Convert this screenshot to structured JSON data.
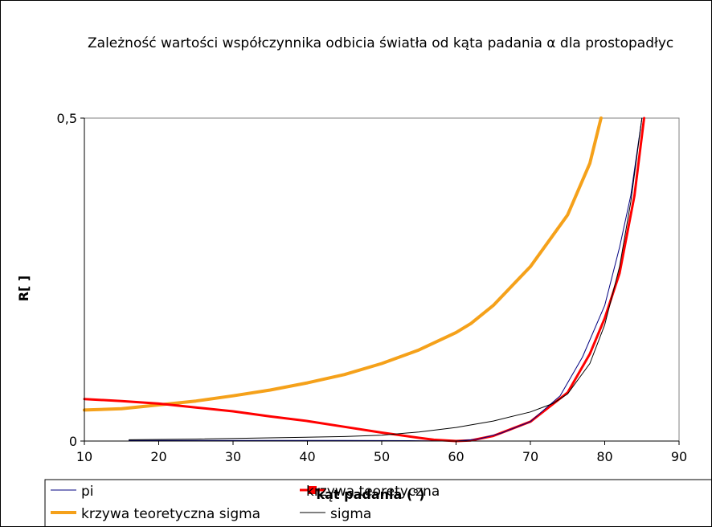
{
  "chart_data": {
    "type": "line",
    "title": "Zależność wartości współczynnika odbicia światła od kąta padania α dla prostopadłyc",
    "xlabel": "kąt padania (°)",
    "ylabel": "R[ ]",
    "xlim": [
      10,
      90
    ],
    "ylim": [
      0,
      0.5
    ],
    "x_ticks": [
      "10",
      "20",
      "30",
      "40",
      "50",
      "60",
      "70",
      "80",
      "90"
    ],
    "y_ticks": [
      "0",
      "0,5"
    ],
    "grid": false,
    "legend": "bottom",
    "series": [
      {
        "name": "pi",
        "color": "#000080",
        "x": [
          16,
          30,
          45,
          55,
          58,
          60,
          63,
          66,
          70,
          74,
          77,
          80,
          82,
          83.5,
          85
        ],
        "y": [
          0.001,
          0.001,
          0.001,
          0.0005,
          0,
          0,
          0.003,
          0.012,
          0.03,
          0.07,
          0.13,
          0.21,
          0.3,
          0.38,
          0.5
        ]
      },
      {
        "name": "krzywa teoretyczna",
        "color": "#ff0000",
        "x": [
          10,
          15,
          20,
          25,
          30,
          35,
          40,
          45,
          50,
          55,
          57,
          60,
          62,
          65,
          70,
          75,
          78,
          80,
          82,
          84,
          85.3
        ],
        "y": [
          0.065,
          0.062,
          0.058,
          0.052,
          0.046,
          0.038,
          0.031,
          0.022,
          0.013,
          0.005,
          0.002,
          0,
          0.001,
          0.008,
          0.03,
          0.075,
          0.135,
          0.19,
          0.26,
          0.38,
          0.5
        ]
      },
      {
        "name": "krzywa teoretyczna sigma",
        "color": "#f5a11a",
        "x": [
          10,
          15,
          20,
          25,
          30,
          35,
          40,
          45,
          50,
          55,
          60,
          62,
          65,
          70,
          75,
          78,
          79.5
        ],
        "y": [
          0.048,
          0.05,
          0.056,
          0.062,
          0.07,
          0.079,
          0.09,
          0.103,
          0.12,
          0.141,
          0.168,
          0.182,
          0.21,
          0.27,
          0.35,
          0.43,
          0.5
        ]
      },
      {
        "name": "sigma",
        "color": "#000000",
        "x": [
          16,
          25,
          35,
          45,
          50,
          55,
          60,
          65,
          70,
          73,
          75,
          78,
          80,
          82,
          83.5,
          85
        ],
        "y": [
          0.002,
          0.003,
          0.005,
          0.007,
          0.009,
          0.014,
          0.021,
          0.031,
          0.045,
          0.058,
          0.073,
          0.12,
          0.18,
          0.27,
          0.37,
          0.5
        ]
      }
    ]
  }
}
